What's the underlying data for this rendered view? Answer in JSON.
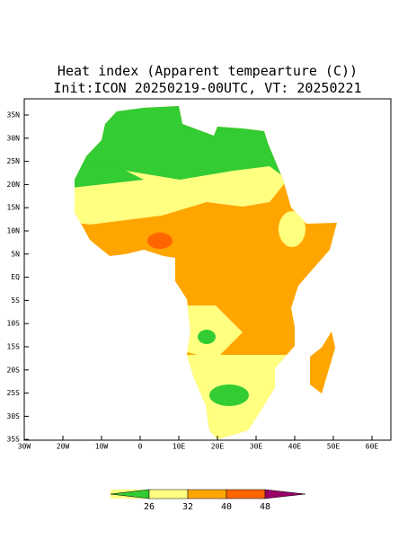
{
  "header": {
    "title": "Heat index (Apparent tempearture (C))",
    "subtitle": "Init:ICON 20250219-00UTC, VT: 20250221"
  },
  "map": {
    "lat_ticks": [
      "35N",
      "30N",
      "25N",
      "20N",
      "15N",
      "10N",
      "5N",
      "EQ",
      "5S",
      "10S",
      "15S",
      "20S",
      "25S",
      "30S",
      "35S"
    ],
    "lon_ticks": [
      "30W",
      "20W",
      "10W",
      "0",
      "10E",
      "20E",
      "30E",
      "40E",
      "50E",
      "60E"
    ]
  },
  "colorbar": {
    "labels": [
      "26",
      "32",
      "40",
      "48"
    ]
  }
}
